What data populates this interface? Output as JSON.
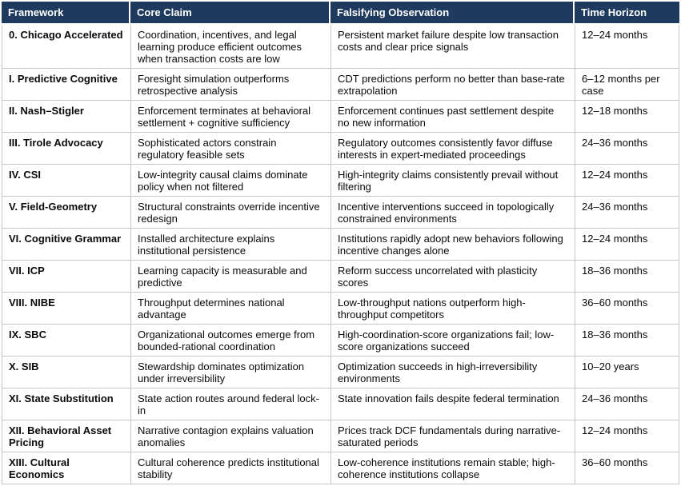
{
  "table": {
    "columns": [
      {
        "label": "Framework"
      },
      {
        "label": "Core Claim"
      },
      {
        "label": "Falsifying Observation"
      },
      {
        "label": "Time Horizon"
      }
    ],
    "rows": [
      {
        "framework": "0. Chicago Accelerated",
        "core_claim": "Coordination, incentives, and legal learning produce efficient outcomes when transaction costs are low",
        "falsifying_observation": "Persistent market failure despite low transaction costs and clear price signals",
        "time_horizon": "12–24 months"
      },
      {
        "framework": "I. Predictive Cognitive",
        "core_claim": "Foresight simulation outperforms retrospective analysis",
        "falsifying_observation": "CDT predictions perform no better than base-rate extrapolation",
        "time_horizon": "6–12 months per case"
      },
      {
        "framework": "II. Nash–Stigler",
        "core_claim": "Enforcement terminates at behavioral settlement + cognitive sufficiency",
        "falsifying_observation": "Enforcement continues past settlement despite no new information",
        "time_horizon": "12–18 months"
      },
      {
        "framework": "III. Tirole Advocacy",
        "core_claim": "Sophisticated actors constrain regulatory feasible sets",
        "falsifying_observation": "Regulatory outcomes consistently favor diffuse interests in expert-mediated proceedings",
        "time_horizon": "24–36 months"
      },
      {
        "framework": "IV. CSI",
        "core_claim": "Low-integrity causal claims dominate policy when not filtered",
        "falsifying_observation": "High-integrity claims consistently prevail without filtering",
        "time_horizon": "12–24 months"
      },
      {
        "framework": "V. Field-Geometry",
        "core_claim": "Structural constraints override incentive redesign",
        "falsifying_observation": "Incentive interventions succeed in topologically constrained environments",
        "time_horizon": "24–36 months"
      },
      {
        "framework": "VI. Cognitive Grammar",
        "core_claim": "Installed architecture explains institutional persistence",
        "falsifying_observation": "Institutions rapidly adopt new behaviors following incentive changes alone",
        "time_horizon": "12–24 months"
      },
      {
        "framework": "VII. ICP",
        "core_claim": "Learning capacity is measurable and predictive",
        "falsifying_observation": "Reform success uncorrelated with plasticity scores",
        "time_horizon": "18–36 months"
      },
      {
        "framework": "VIII. NIBE",
        "core_claim": "Throughput determines national advantage",
        "falsifying_observation": "Low-throughput nations outperform high-throughput competitors",
        "time_horizon": "36–60 months"
      },
      {
        "framework": "IX. SBC",
        "core_claim": "Organizational outcomes emerge from bounded-rational coordination",
        "falsifying_observation": "High-coordination-score organizations fail; low-score organizations succeed",
        "time_horizon": "18–36 months"
      },
      {
        "framework": "X. SIB",
        "core_claim": "Stewardship dominates optimization under irreversibility",
        "falsifying_observation": "Optimization succeeds in high-irreversibility environments",
        "time_horizon": "10–20 years"
      },
      {
        "framework": "XI. State Substitution",
        "core_claim": "State action routes around federal lock-in",
        "falsifying_observation": "State innovation fails despite federal termination",
        "time_horizon": "24–36 months"
      },
      {
        "framework": "XII. Behavioral Asset Pricing",
        "core_claim": "Narrative contagion explains valuation anomalies",
        "falsifying_observation": "Prices track DCF fundamentals during narrative-saturated periods",
        "time_horizon": "12–24 months"
      },
      {
        "framework": "XIII. Cultural Economics",
        "core_claim": "Cultural coherence predicts institutional stability",
        "falsifying_observation": "Low-coherence institutions remain stable; high-coherence institutions collapse",
        "time_horizon": "36–60 months"
      }
    ],
    "colors": {
      "header_bg": "#1e3a5f",
      "header_text": "#ffffff",
      "border": "#c6c6c6",
      "body_text": "#0a0a0a"
    }
  }
}
